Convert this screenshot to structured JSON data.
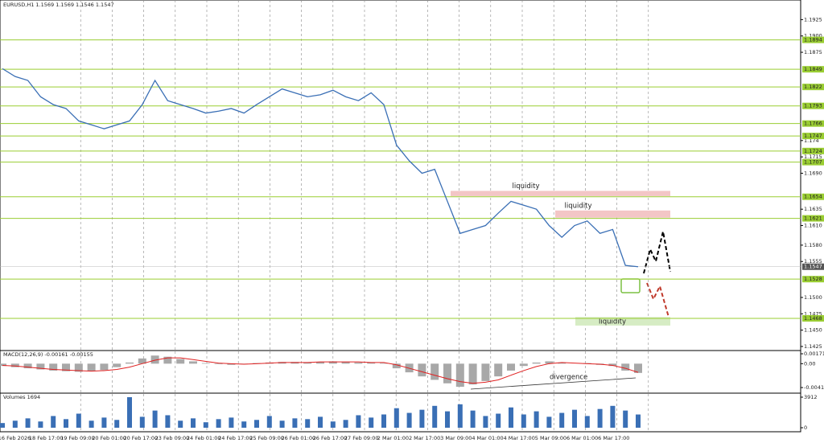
{
  "chart_data": [
    {
      "type": "price",
      "title": "EURUSD,H1  1.1569 1.1569 1.1546 1.1547",
      "color": "#3a6fb5",
      "values": [
        1.185,
        1.1838,
        1.1832,
        1.1807,
        1.1795,
        1.1789,
        1.177,
        1.1764,
        1.1758,
        1.1764,
        1.177,
        1.1795,
        1.1832,
        1.1801,
        1.1795,
        1.1789,
        1.1782,
        1.1785,
        1.1789,
        1.1782,
        1.1795,
        1.1807,
        1.1819,
        1.1813,
        1.1807,
        1.181,
        1.1817,
        1.1807,
        1.1801,
        1.1813,
        1.1795,
        1.1733,
        1.1709,
        1.169,
        1.1696,
        1.1647,
        1.1598,
        1.1604,
        1.161,
        1.1629,
        1.1647,
        1.1641,
        1.1635,
        1.161,
        1.1592,
        1.161,
        1.1617,
        1.1598,
        1.1604,
        1.1549,
        1.1547
      ],
      "ylim": [
        1.142,
        1.1955
      ],
      "yticks": [
        1.1925,
        {
          "value": 1.19,
          "label": "1.1900"
        },
        1.1875,
        1.174,
        1.1715,
        {
          "value": 1.169,
          "label": "1.1690"
        },
        1.1635,
        {
          "value": 1.161,
          "label": "1.1610"
        },
        {
          "value": 1.158,
          "label": "1.1580"
        },
        1.1555,
        {
          "value": 1.15,
          "label": "1.1500"
        },
        1.1475,
        {
          "value": 1.145,
          "label": "1.1450"
        },
        1.1425
      ],
      "levels": [
        1.1894,
        1.1849,
        1.1822,
        1.1793,
        1.1766,
        1.1747,
        1.1724,
        1.1707,
        1.1654,
        1.1621,
        1.1528,
        1.1468
      ],
      "level_color": "#9acd32",
      "current_price": 1.1547,
      "zones": [
        {
          "label": "liquidity",
          "range": [
            1.1655,
            1.1663
          ],
          "color": "#f3c6c6"
        },
        {
          "label": "liquidity",
          "range": [
            1.1622,
            1.1633
          ],
          "color": "#f3c6c6"
        },
        {
          "label": "liquidity",
          "range": [
            1.1457,
            1.147
          ],
          "color": "#d6ecc4"
        }
      ],
      "time_labels": [
        "16 Feb 2026",
        "18 Feb 17:00",
        "19 Feb 09:00",
        "20 Feb 01:00",
        "20 Feb 17:00",
        "23 Feb 09:00",
        "24 Feb 01:00",
        "24 Feb 17:00",
        "25 Feb 09:00",
        "26 Feb 01:00",
        "26 Feb 17:00",
        "27 Feb 09:00",
        "2 Mar 01:00",
        "2 Mar 17:00",
        "3 Mar 09:00",
        "4 Mar 01:00",
        "4 Mar 17:00",
        "5 Mar 09:00",
        "6 Mar 01:00",
        "6 Mar 17:00"
      ]
    },
    {
      "type": "macd",
      "title": "MACD(12,26,9) -0.00161 -0.00155",
      "color": "#a8a8a8",
      "signal_color": "#e02020",
      "values": [
        -0.0004,
        -0.0006,
        -0.0008,
        -0.001,
        -0.0012,
        -0.0013,
        -0.0014,
        -0.0013,
        -0.0011,
        -0.0006,
        0.0002,
        0.0009,
        0.0014,
        0.0012,
        0.0008,
        0.0004,
        0.0001,
        -0.0001,
        -0.0002,
        -0.0001,
        0.0001,
        0.0002,
        0.0003,
        0.0003,
        0.0002,
        0.0003,
        0.0004,
        0.0003,
        0.0002,
        0.0002,
        0.0001,
        -0.0008,
        -0.0015,
        -0.0022,
        -0.0028,
        -0.0034,
        -0.004,
        -0.0036,
        -0.003,
        -0.0022,
        -0.0012,
        -0.0004,
        0.0002,
        0.0004,
        0.0002,
        0,
        0.0001,
        -0.0002,
        -0.0004,
        -0.0012,
        -0.0016
      ],
      "signal": [
        -0.0003,
        -0.0004,
        -0.0006,
        -0.0008,
        -0.001,
        -0.0011,
        -0.0012,
        -0.0013,
        -0.0012,
        -0.001,
        -0.0006,
        0,
        0.0006,
        0.001,
        0.001,
        0.0007,
        0.0004,
        0.0001,
        0,
        -0.0001,
        0,
        0.0001,
        0.0002,
        0.0002,
        0.0002,
        0.0003,
        0.0003,
        0.0003,
        0.0003,
        0.0002,
        0.0002,
        -0.0002,
        -0.0008,
        -0.0014,
        -0.002,
        -0.0026,
        -0.0031,
        -0.0034,
        -0.0032,
        -0.0028,
        -0.002,
        -0.0012,
        -0.0005,
        0,
        0.0002,
        0.0001,
        0,
        -0.0001,
        -0.0003,
        -0.0008,
        -0.0015
      ],
      "ylim": [
        -0.00496,
        0.00213
      ],
      "yticks": [
        0.00171,
        {
          "value": 0,
          "label": "0.00"
        },
        -0.00413
      ],
      "annotation": "divergence"
    },
    {
      "type": "volume",
      "title": "Volumes 1694",
      "color": "#3a6fb5",
      "values": [
        600,
        900,
        1200,
        800,
        1500,
        1100,
        1800,
        900,
        1300,
        1000,
        3912,
        1400,
        2200,
        1600,
        900,
        1200,
        700,
        1100,
        1300,
        800,
        1000,
        1500,
        900,
        1200,
        1100,
        1400,
        800,
        1000,
        1600,
        1300,
        1700,
        2500,
        1900,
        2300,
        2800,
        2100,
        3000,
        2200,
        1500,
        1800,
        2600,
        1700,
        2100,
        1400,
        1900,
        2300,
        1500,
        2400,
        2800,
        2200,
        1694
      ],
      "ylim": [
        0,
        3912
      ],
      "yticks": [
        3912,
        0
      ]
    }
  ]
}
